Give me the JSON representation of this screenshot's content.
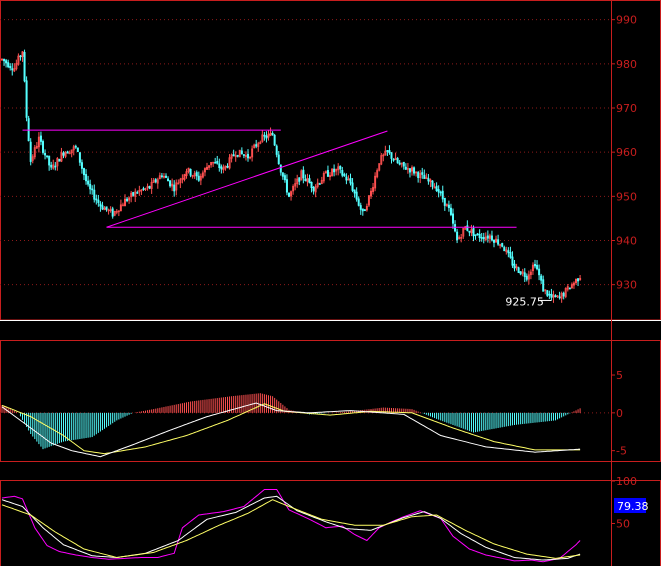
{
  "colors": {
    "background": "#000000",
    "frame": "#c81e1e",
    "grid": "#8c1a1a",
    "candle_up": "#ff5050",
    "candle_down": "#54ffff",
    "trendline": "#ff00ff",
    "line_white": "#ffffff",
    "line_yellow": "#ffff66",
    "line_magenta": "#ff00ff",
    "macd_pos": "#ff5050",
    "macd_neg": "#54ffff",
    "badge_bg": "#0000ff"
  },
  "chart_data": [
    {
      "id": "price",
      "type": "candlestick",
      "ylim": [
        922,
        994
      ],
      "yticks": [
        "990",
        "980",
        "970",
        "960",
        "950",
        "940",
        "930"
      ],
      "grid": true,
      "anchors": [
        [
          0,
          981
        ],
        [
          6,
          979
        ],
        [
          10,
          983
        ],
        [
          12,
          968
        ],
        [
          14,
          958
        ],
        [
          18,
          963
        ],
        [
          24,
          956
        ],
        [
          30,
          960
        ],
        [
          36,
          961
        ],
        [
          42,
          952
        ],
        [
          48,
          948
        ],
        [
          54,
          946
        ],
        [
          60,
          949
        ],
        [
          66,
          951
        ],
        [
          72,
          952
        ],
        [
          78,
          955
        ],
        [
          84,
          952
        ],
        [
          90,
          956
        ],
        [
          96,
          954
        ],
        [
          102,
          958
        ],
        [
          108,
          956
        ],
        [
          114,
          960
        ],
        [
          120,
          959
        ],
        [
          126,
          963
        ],
        [
          132,
          964
        ],
        [
          136,
          956
        ],
        [
          140,
          950
        ],
        [
          146,
          955
        ],
        [
          152,
          952
        ],
        [
          158,
          955
        ],
        [
          164,
          956
        ],
        [
          170,
          953
        ],
        [
          176,
          946
        ],
        [
          180,
          951
        ],
        [
          184,
          958
        ],
        [
          188,
          960
        ],
        [
          194,
          957
        ],
        [
          200,
          956
        ],
        [
          206,
          954
        ],
        [
          212,
          952
        ],
        [
          218,
          947
        ],
        [
          222,
          940
        ],
        [
          226,
          943
        ],
        [
          232,
          941
        ],
        [
          238,
          941
        ],
        [
          244,
          939
        ],
        [
          250,
          934
        ],
        [
          256,
          932
        ],
        [
          260,
          935
        ],
        [
          264,
          929
        ],
        [
          268,
          927
        ],
        [
          272,
          927
        ],
        [
          276,
          929
        ],
        [
          282,
          932
        ]
      ],
      "trendlines": [
        {
          "from": [
            10,
            965
          ],
          "to": [
            136,
            965
          ]
        },
        {
          "from": [
            51,
            943
          ],
          "to": [
            251,
            943
          ]
        },
        {
          "from": [
            51,
            943
          ],
          "to": [
            188,
            964.8
          ]
        }
      ],
      "annotations": [
        {
          "text": "925.75",
          "x": 268,
          "y": 925.75
        }
      ]
    },
    {
      "id": "macd",
      "type": "line+bar",
      "ylim": [
        -6.5,
        9.5
      ],
      "yticks": [
        "5",
        "0",
        "-5"
      ],
      "histogram_anchors": [
        [
          0,
          1
        ],
        [
          8,
          0
        ],
        [
          14,
          -2.8
        ],
        [
          20,
          -4.8
        ],
        [
          30,
          -3.8
        ],
        [
          44,
          -3.2
        ],
        [
          56,
          -1
        ],
        [
          64,
          0
        ],
        [
          74,
          0.5
        ],
        [
          92,
          1.5
        ],
        [
          112,
          2.2
        ],
        [
          126,
          2.6
        ],
        [
          132,
          2.2
        ],
        [
          140,
          0.4
        ],
        [
          150,
          -0.2
        ],
        [
          170,
          0.2
        ],
        [
          186,
          0.7
        ],
        [
          200,
          0.5
        ],
        [
          212,
          -0.8
        ],
        [
          230,
          -2.6
        ],
        [
          250,
          -1.6
        ],
        [
          270,
          -1
        ],
        [
          282,
          0.6
        ]
      ],
      "series": [
        {
          "color": "yellow",
          "values": [
            [
              0,
              1
            ],
            [
              14,
              -0.5
            ],
            [
              30,
              -3
            ],
            [
              40,
              -5
            ],
            [
              50,
              -5.4
            ],
            [
              70,
              -4.5
            ],
            [
              90,
              -3
            ],
            [
              110,
              -1
            ],
            [
              128,
              1.2
            ],
            [
              138,
              0.2
            ],
            [
              160,
              -0.3
            ],
            [
              180,
              0.2
            ],
            [
              200,
              0
            ],
            [
              220,
              -2
            ],
            [
              240,
              -3.8
            ],
            [
              260,
              -4.9
            ],
            [
              282,
              -4.9
            ]
          ]
        },
        {
          "color": "white",
          "values": [
            [
              0,
              0.8
            ],
            [
              14,
              -2
            ],
            [
              24,
              -4
            ],
            [
              34,
              -5
            ],
            [
              48,
              -5.8
            ],
            [
              64,
              -4.2
            ],
            [
              80,
              -2.5
            ],
            [
              100,
              -0.5
            ],
            [
              124,
              1.3
            ],
            [
              134,
              0.3
            ],
            [
              150,
              0
            ],
            [
              170,
              0.3
            ],
            [
              196,
              -0.2
            ],
            [
              214,
              -3
            ],
            [
              236,
              -4.5
            ],
            [
              260,
              -5.2
            ],
            [
              282,
              -4.8
            ]
          ]
        }
      ]
    },
    {
      "id": "kdj",
      "type": "line",
      "ylim": [
        0,
        100
      ],
      "yticks": [
        "100",
        "50"
      ],
      "badge": "79.38",
      "series": [
        {
          "color": "magenta",
          "values": [
            [
              0,
              80
            ],
            [
              6,
              82
            ],
            [
              10,
              79
            ],
            [
              16,
              45
            ],
            [
              22,
              24
            ],
            [
              28,
              17
            ],
            [
              36,
              13
            ],
            [
              44,
              10
            ],
            [
              52,
              8
            ],
            [
              60,
              9
            ],
            [
              68,
              10
            ],
            [
              76,
              10
            ],
            [
              84,
              15
            ],
            [
              88,
              45
            ],
            [
              96,
              60
            ],
            [
              108,
              64
            ],
            [
              118,
              70
            ],
            [
              128,
              90
            ],
            [
              134,
              90
            ],
            [
              140,
              66
            ],
            [
              150,
              55
            ],
            [
              158,
              45
            ],
            [
              166,
              47
            ],
            [
              172,
              37
            ],
            [
              178,
              30
            ],
            [
              184,
              45
            ],
            [
              190,
              52
            ],
            [
              196,
              58
            ],
            [
              204,
              65
            ],
            [
              214,
              56
            ],
            [
              220,
              35
            ],
            [
              228,
              20
            ],
            [
              236,
              13
            ],
            [
              244,
              9
            ],
            [
              250,
              6
            ],
            [
              258,
              7
            ],
            [
              264,
              5
            ],
            [
              272,
              9
            ],
            [
              280,
              25
            ],
            [
              282,
              30
            ]
          ]
        },
        {
          "color": "white",
          "values": [
            [
              0,
              78
            ],
            [
              10,
              70
            ],
            [
              20,
              45
            ],
            [
              30,
              25
            ],
            [
              44,
              12
            ],
            [
              56,
              10
            ],
            [
              70,
              15
            ],
            [
              86,
              30
            ],
            [
              100,
              55
            ],
            [
              114,
              63
            ],
            [
              128,
              80
            ],
            [
              134,
              82
            ],
            [
              144,
              65
            ],
            [
              158,
              52
            ],
            [
              168,
              44
            ],
            [
              180,
              42
            ],
            [
              196,
              57
            ],
            [
              206,
              64
            ],
            [
              214,
              56
            ],
            [
              224,
              38
            ],
            [
              236,
              22
            ],
            [
              250,
              10
            ],
            [
              264,
              7
            ],
            [
              276,
              9
            ],
            [
              282,
              14
            ]
          ]
        },
        {
          "color": "yellow",
          "values": [
            [
              0,
              72
            ],
            [
              14,
              60
            ],
            [
              26,
              40
            ],
            [
              40,
              20
            ],
            [
              56,
              10
            ],
            [
              74,
              16
            ],
            [
              90,
              30
            ],
            [
              106,
              48
            ],
            [
              120,
              62
            ],
            [
              132,
              78
            ],
            [
              140,
              70
            ],
            [
              156,
              55
            ],
            [
              172,
              48
            ],
            [
              186,
              48
            ],
            [
              200,
              58
            ],
            [
              212,
              60
            ],
            [
              226,
              42
            ],
            [
              240,
              26
            ],
            [
              256,
              14
            ],
            [
              270,
              9
            ],
            [
              282,
              13
            ]
          ]
        }
      ]
    }
  ]
}
